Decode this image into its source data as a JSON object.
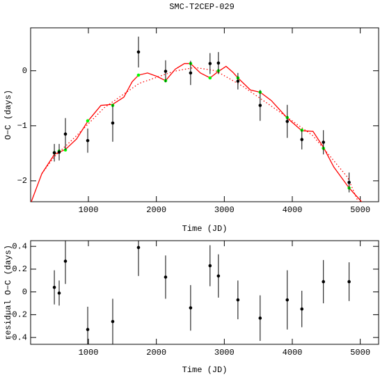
{
  "chart_data": [
    {
      "type": "scatter",
      "title": "SMC-T2CEP-029",
      "xlabel": "Time (JD)",
      "ylabel": "O−C (days)",
      "xlim": [
        150,
        5270
      ],
      "ylim": [
        -2.38,
        0.78
      ],
      "xticks": [
        1000,
        2000,
        3000,
        4000,
        5000
      ],
      "yticks": [
        {
          "value": -2,
          "label": "−2"
        },
        {
          "value": -1,
          "label": "−1"
        },
        0
      ],
      "series": [
        {
          "mode": "line",
          "dash": "solid",
          "color": "#ff0000",
          "x": [
            151,
            315,
            499,
            662,
            826,
            990,
            1184,
            1358,
            1522,
            1644,
            1737,
            1870,
            2003,
            2136,
            2279,
            2412,
            2504,
            2647,
            2790,
            2893,
            3026,
            3128,
            3200,
            3384,
            3527,
            3690,
            3926,
            4141,
            4304,
            4458,
            4611,
            4836,
            5020
          ],
          "values": [
            -2.41,
            -1.87,
            -1.52,
            -1.43,
            -1.24,
            -0.92,
            -0.63,
            -0.61,
            -0.48,
            -0.2,
            -0.08,
            -0.04,
            -0.1,
            -0.18,
            0.03,
            0.13,
            0.13,
            -0.04,
            -0.13,
            -0.03,
            0.08,
            -0.03,
            -0.13,
            -0.35,
            -0.39,
            -0.54,
            -0.86,
            -1.09,
            -1.1,
            -1.39,
            -1.75,
            -2.13,
            -2.38
          ]
        },
        {
          "mode": "line",
          "dash": "dotted",
          "color": "#ff0000",
          "x": [
            315,
            499,
            826,
            1235,
            1747,
            2258,
            2565,
            2872,
            3281,
            3793,
            4304,
            4816,
            4969
          ],
          "values": [
            -1.87,
            -1.56,
            -1.18,
            -0.67,
            -0.23,
            -0.01,
            0.06,
            0,
            -0.29,
            -0.73,
            -1.18,
            -1.94,
            -2.38
          ]
        },
        {
          "mode": "markers",
          "color": "#00ff00",
          "x": [
            499,
            570,
            662,
            990,
            1358,
            1737,
            2136,
            2504,
            2790,
            2913,
            3200,
            3527,
            3926,
            4141,
            4458,
            4836
          ],
          "values": [
            -1.49,
            -1.46,
            -1.44,
            -0.91,
            -0.63,
            -0.08,
            -0.18,
            0.13,
            -0.13,
            0,
            -0.13,
            -0.39,
            -0.85,
            -1.08,
            -1.41,
            -2.13
          ]
        },
        {
          "mode": "markers",
          "color": "#000000",
          "x": [
            499,
            570,
            662,
            990,
            1358,
            1737,
            2136,
            2504,
            2790,
            2913,
            3200,
            3527,
            3926,
            4141,
            4458,
            4836
          ],
          "values": [
            -1.49,
            -1.48,
            -1.15,
            -1.27,
            -0.95,
            0.34,
            -0.01,
            -0.04,
            0.13,
            0.14,
            -0.19,
            -0.63,
            -0.92,
            -1.25,
            -1.3,
            -2.03
          ],
          "errors": [
            0.16,
            0.15,
            0.29,
            0.22,
            0.34,
            0.28,
            0.2,
            0.22,
            0.19,
            0.2,
            0.15,
            0.28,
            0.3,
            0.18,
            0.22,
            0.18
          ]
        }
      ]
    },
    {
      "type": "scatter",
      "xlabel": "Time (JD)",
      "ylabel": "residual O−C (days)",
      "xlim": [
        150,
        5270
      ],
      "ylim": [
        -0.46,
        0.45
      ],
      "xticks": [
        1000,
        2000,
        3000,
        4000,
        5000
      ],
      "yticks": [
        {
          "value": -0.4,
          "label": "−0.4"
        },
        {
          "value": -0.2,
          "label": "−0.2"
        },
        0,
        0.2,
        0.4
      ],
      "series": [
        {
          "mode": "markers",
          "color": "#000000",
          "x": [
            499,
            570,
            662,
            990,
            1358,
            1737,
            2136,
            2504,
            2790,
            2913,
            3200,
            3527,
            3926,
            4141,
            4458,
            4836
          ],
          "values": [
            0.04,
            -0.01,
            0.27,
            -0.33,
            -0.26,
            0.39,
            0.13,
            -0.14,
            0.23,
            0.14,
            -0.07,
            -0.23,
            -0.07,
            -0.15,
            0.09,
            0.09
          ],
          "errors": [
            0.15,
            0.11,
            0.2,
            0.2,
            0.2,
            0.25,
            0.19,
            0.2,
            0.18,
            0.19,
            0.17,
            0.2,
            0.26,
            0.16,
            0.19,
            0.17
          ]
        }
      ]
    }
  ]
}
